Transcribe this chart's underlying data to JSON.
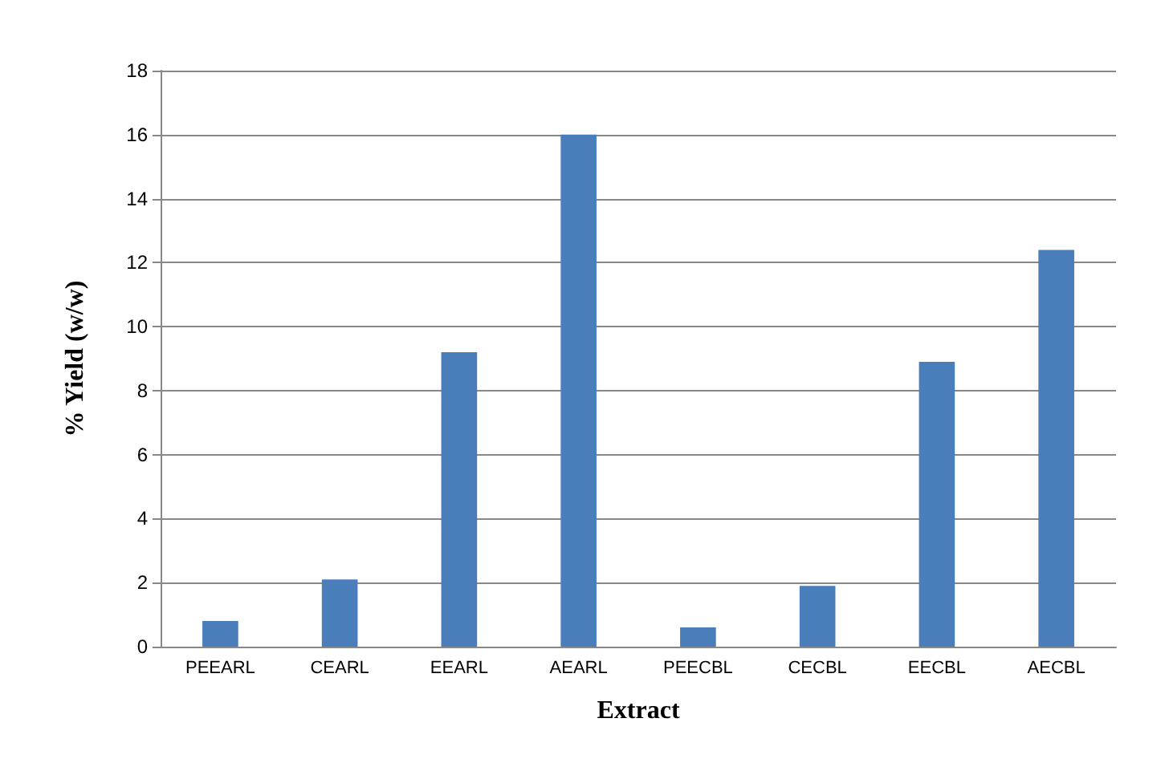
{
  "chart_data": {
    "type": "bar",
    "xlabel": "Extract",
    "ylabel": "% Yield (w/w)",
    "categories": [
      "PEEARL",
      "CEARL",
      "EEARL",
      "AEARL",
      "PEECBL",
      "CECBL",
      "EECBL",
      "AECBL"
    ],
    "values": [
      0.8,
      2.1,
      9.2,
      16,
      0.6,
      1.9,
      8.9,
      12.4
    ],
    "color": "#4a7ebb",
    "ylim": [
      0,
      18
    ],
    "yticks": [
      0,
      2,
      4,
      6,
      8,
      10,
      12,
      14,
      16,
      18
    ],
    "grid": "y"
  }
}
